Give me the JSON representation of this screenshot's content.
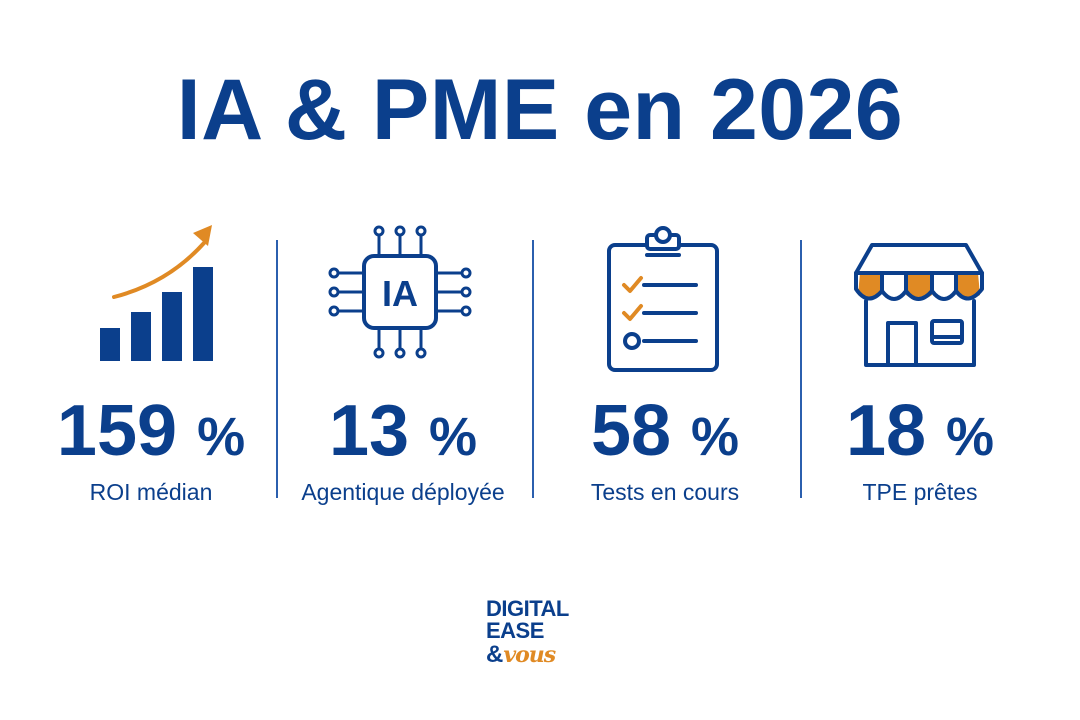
{
  "title": "IA & PME en 2026",
  "colors": {
    "primary_blue": "#0b3f8c",
    "accent_orange": "#e08a24",
    "divider_blue": "#2b5fae"
  },
  "stats": [
    {
      "icon": "bar-chart-growth-icon",
      "number": "159",
      "unit": "%",
      "label": "ROI médian"
    },
    {
      "icon": "ai-chip-icon",
      "icon_text": "IA",
      "number": "13",
      "unit": "%",
      "label": "Agentique déployée"
    },
    {
      "icon": "clipboard-checklist-icon",
      "number": "58",
      "unit": "%",
      "label": "Tests en cours"
    },
    {
      "icon": "storefront-icon",
      "number": "18",
      "unit": "%",
      "label": "TPE prêtes"
    }
  ],
  "logo": {
    "line1": "DIGITAL",
    "line2": "EASE",
    "amp": "&",
    "vous": "vous"
  }
}
